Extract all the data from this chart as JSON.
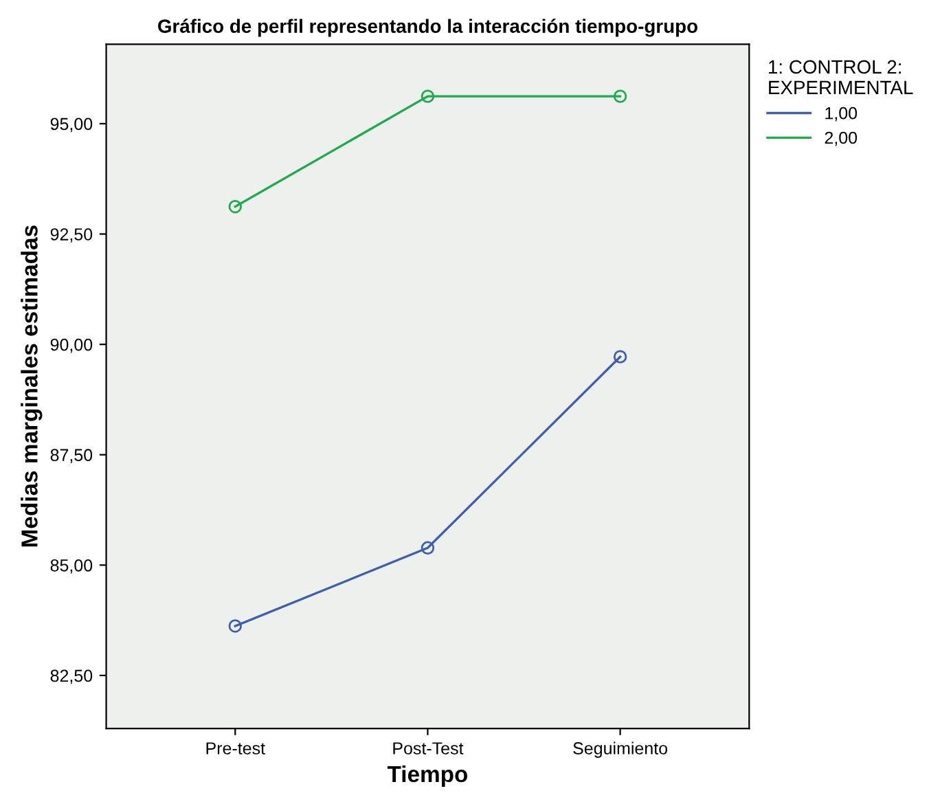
{
  "chart_data": {
    "type": "line",
    "title": "Gráfico de perfil representando la interacción tiempo-grupo",
    "xlabel": "Tiempo",
    "ylabel": "Medias marginales estimadas",
    "legend_title": "1: CONTROL 2:\nEXPERIMENTAL",
    "categories": [
      "Pre-test",
      "Post-Test",
      "Seguimiento"
    ],
    "series": [
      {
        "name": "1,00",
        "color": "#3d5fad",
        "values": [
          83.62,
          85.39,
          89.72
        ]
      },
      {
        "name": "2,00",
        "color": "#1faa4e",
        "values": [
          93.12,
          95.62,
          95.62
        ]
      }
    ],
    "ylim": [
      81.3,
      96.8
    ],
    "yticks": [
      {
        "value": 82.5,
        "label": "82,50"
      },
      {
        "value": 85,
        "label": "85,00"
      },
      {
        "value": 87.5,
        "label": "87,50"
      },
      {
        "value": 90,
        "label": "90,00"
      },
      {
        "value": 92.5,
        "label": "92,50"
      },
      {
        "value": 95,
        "label": "95,00"
      }
    ],
    "marker": "circle",
    "line_style": "solid",
    "grid": false,
    "legend": "top right"
  }
}
